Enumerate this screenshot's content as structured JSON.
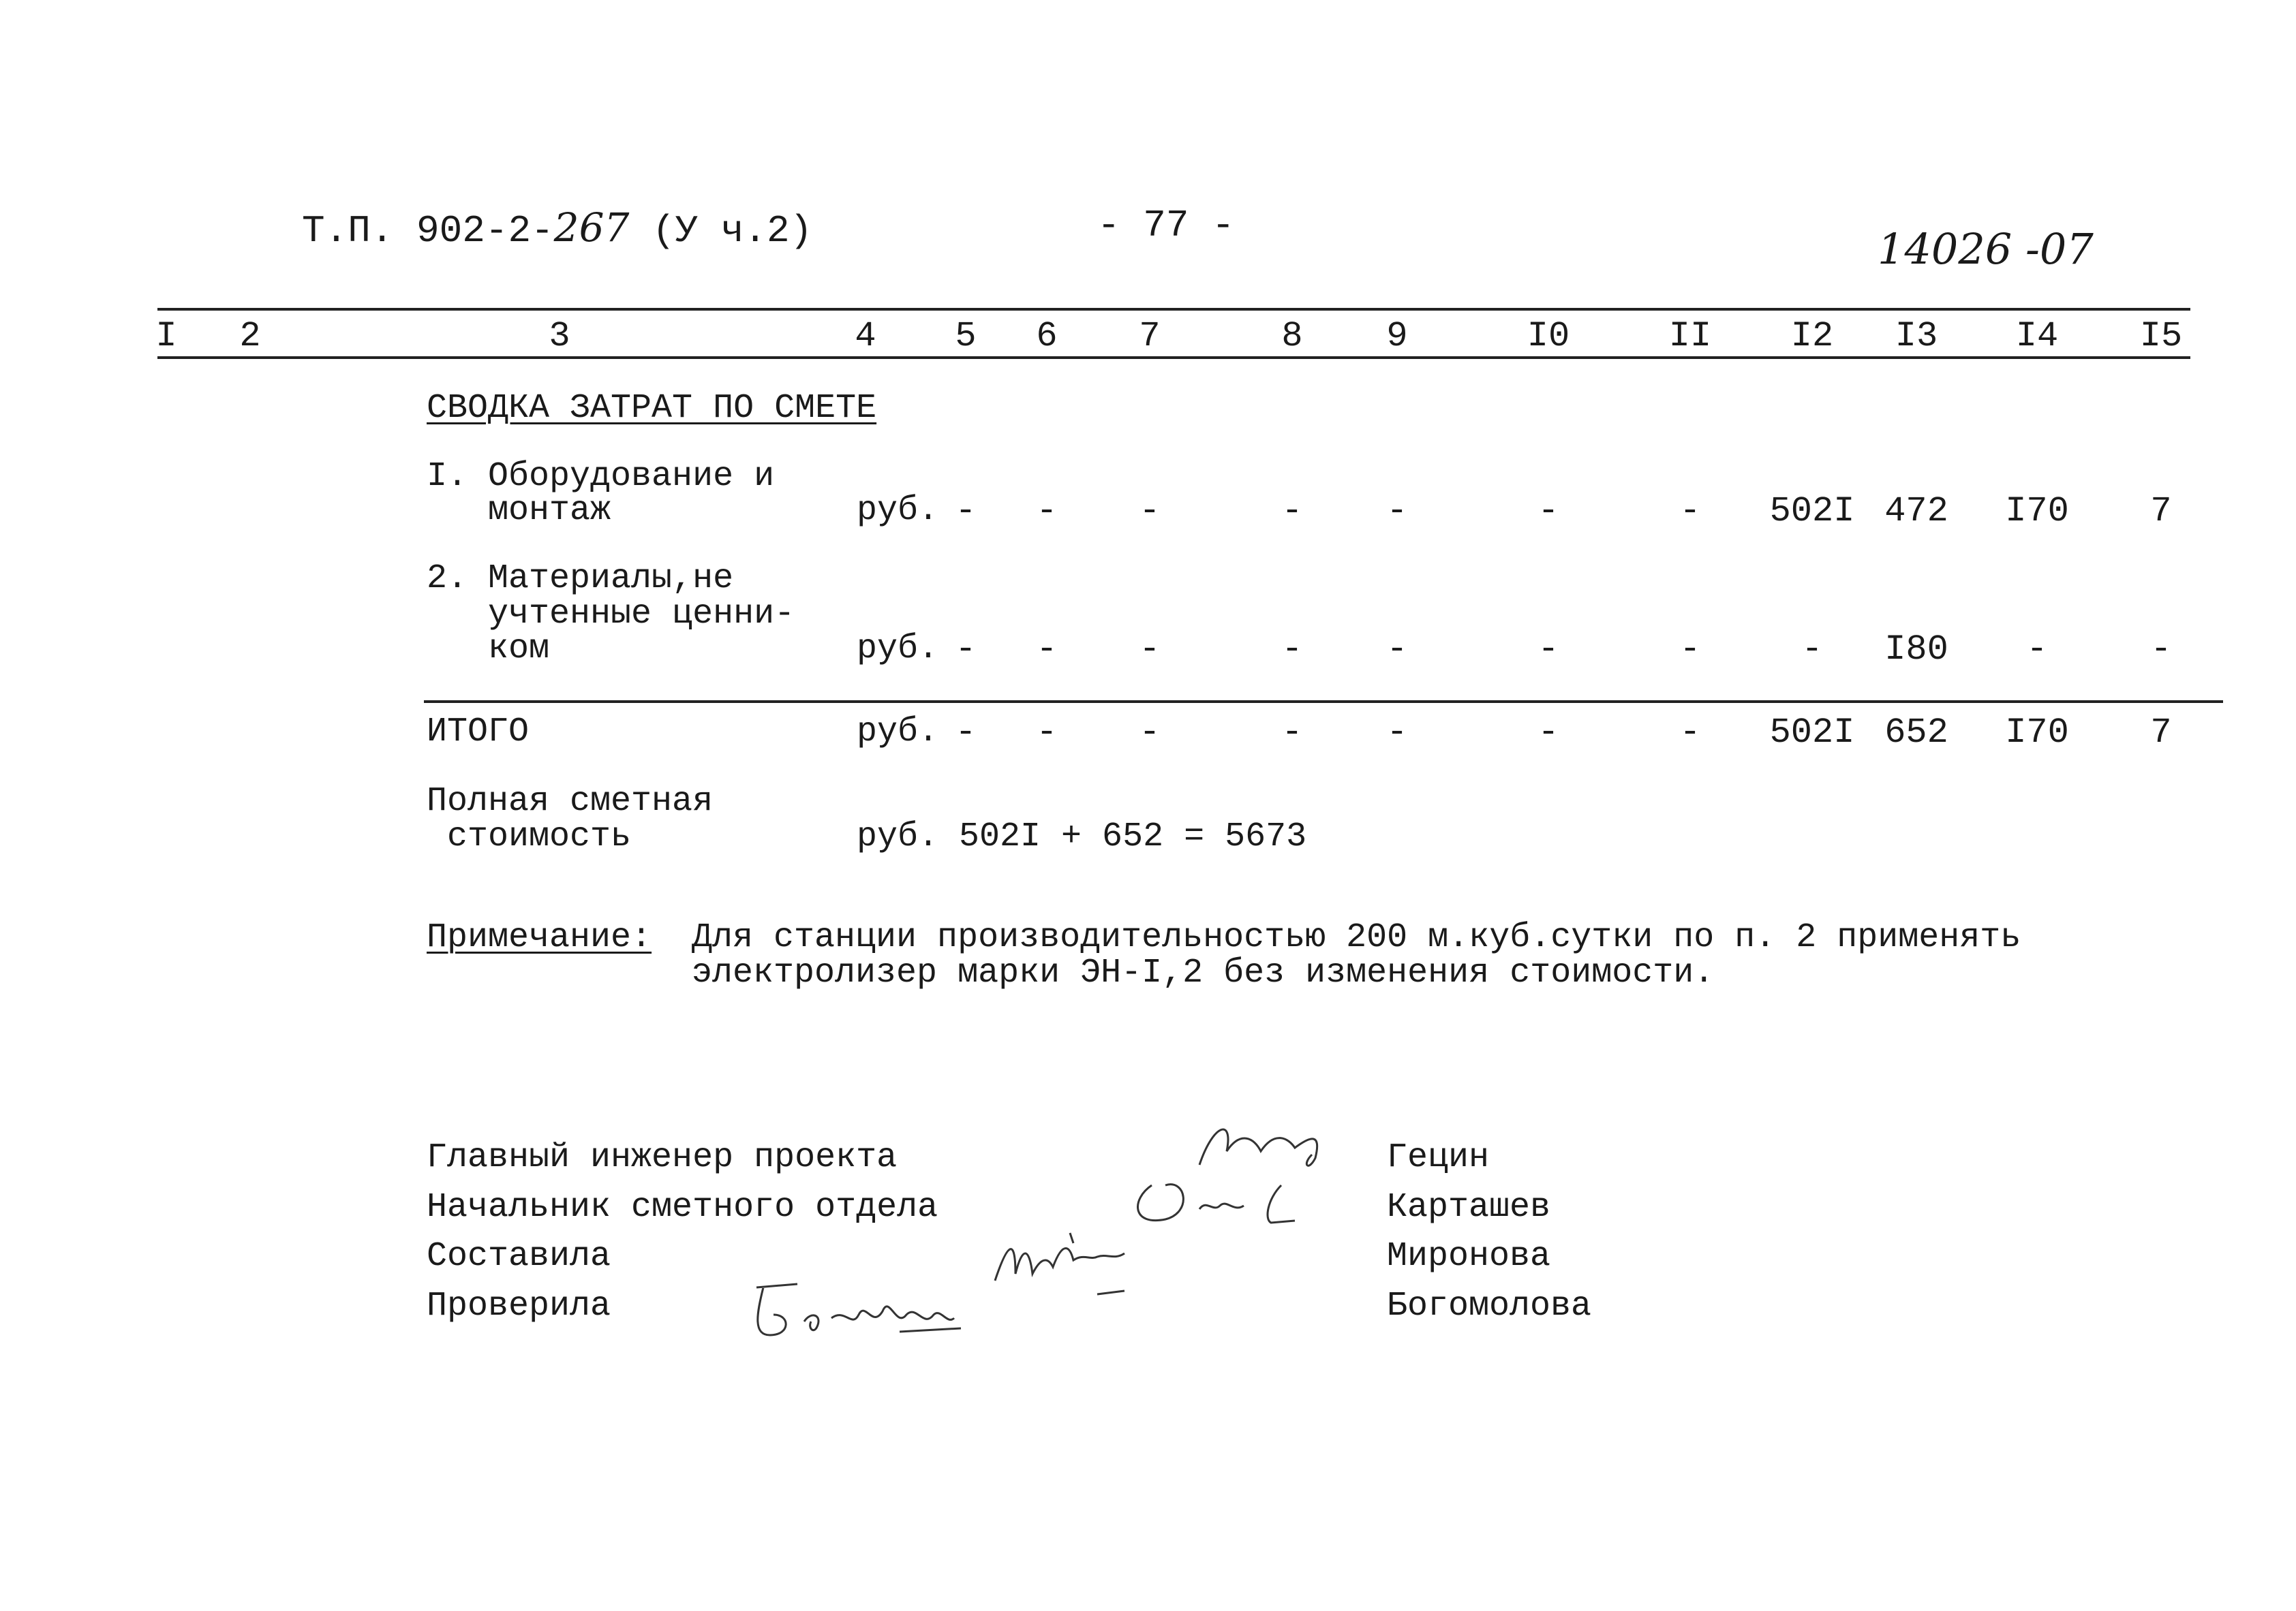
{
  "header": {
    "doc_ref": "Т.П. 902-2-",
    "doc_ref_handwritten": "267",
    "doc_part": "(У ч.2)",
    "page_number": "- 77 -",
    "archive_number": "14026 -07"
  },
  "table": {
    "column_numbers": [
      "I",
      "2",
      "3",
      "4",
      "5",
      "6",
      "7",
      "8",
      "9",
      "I0",
      "II",
      "I2",
      "I3",
      "I4",
      "I5"
    ],
    "section_title": "СВОДКА ЗАТРАТ ПО СМЕТЕ",
    "rows": [
      {
        "label_lines": [
          "I. Оборудование и",
          "   монтаж"
        ],
        "unit": "руб.",
        "cells": [
          "-",
          "-",
          "-",
          "-",
          "-",
          "-",
          "-",
          "502I",
          "472",
          "I70",
          "7"
        ]
      },
      {
        "label_lines": [
          "2. Материалы,не",
          "   учтенные ценни-",
          "   ком"
        ],
        "unit": "руб.",
        "cells": [
          "-",
          "-",
          "-",
          "-",
          "-",
          "-",
          "-",
          "-",
          "I80",
          "-",
          "-"
        ]
      }
    ],
    "total": {
      "label": "ИТОГО",
      "unit": "руб.",
      "cells": [
        "-",
        "-",
        "-",
        "-",
        "-",
        "-",
        "-",
        "502I",
        "652",
        "I70",
        "7"
      ]
    },
    "full_cost": {
      "label_lines": [
        "Полная сметная",
        " стоимость"
      ],
      "value": "руб. 502I + 652 = 5673"
    }
  },
  "note": {
    "label": "Примечание:",
    "lines": [
      "Для станции производительностью 200 м.куб.сутки по п. 2 применять",
      "электролизер марки ЭН-I,2 без изменения стоимости."
    ]
  },
  "signatures": [
    {
      "role": "Главный инженер проекта",
      "name": "Гецин"
    },
    {
      "role": "Начальник сметного отдела",
      "name": "Карташев"
    },
    {
      "role": "Составила",
      "name": "Миронова"
    },
    {
      "role": "Проверила",
      "name": "Богомолова"
    }
  ]
}
